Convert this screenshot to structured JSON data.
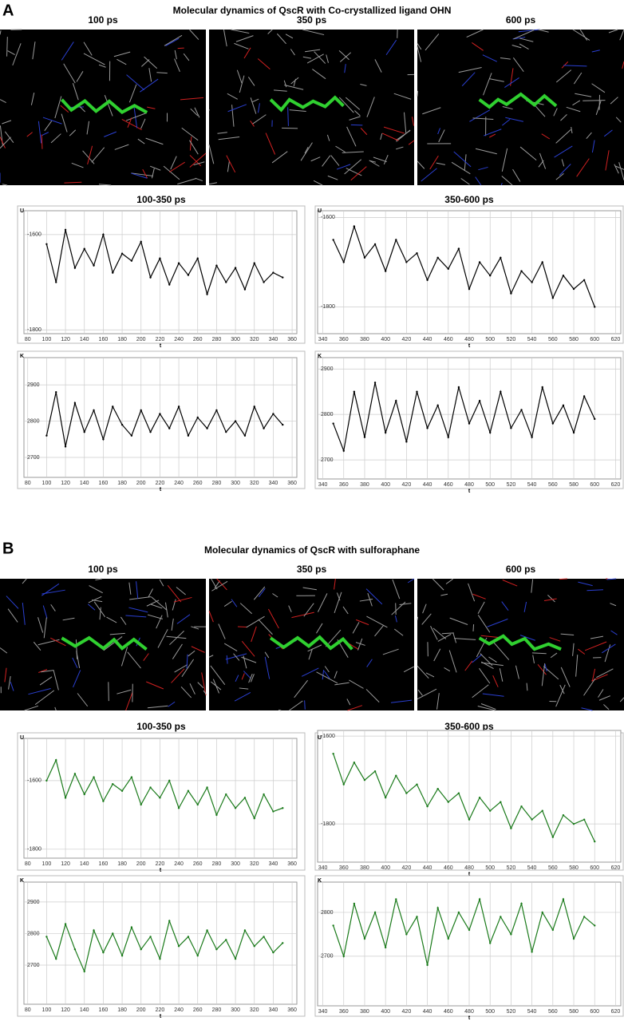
{
  "panels": [
    {
      "label": "A",
      "title": "Molecular dynamics of QscR with Co-crystallized ligand OHN",
      "image_titles": [
        "100 ps",
        "350 ps",
        "600 ps"
      ]
    },
    {
      "label": "B",
      "title": "Molecular dynamics of QscR with sulforaphane",
      "image_titles": [
        "100 ps",
        "350 ps",
        "600 ps"
      ]
    }
  ],
  "chart_data": [
    {
      "type": "line",
      "title": "100-350 ps",
      "ylabel": "U",
      "xlabel": "t",
      "grid": true,
      "color": "#000000",
      "xlim": [
        76,
        365
      ],
      "xticks": [
        80,
        100,
        120,
        140,
        160,
        180,
        200,
        220,
        240,
        260,
        280,
        300,
        320,
        340,
        360
      ],
      "ylim": [
        -1808,
        -1550
      ],
      "yticks": [
        -1600,
        -1800
      ],
      "x": [
        100,
        110,
        120,
        130,
        140,
        150,
        160,
        170,
        180,
        190,
        200,
        210,
        220,
        230,
        240,
        250,
        260,
        270,
        280,
        290,
        300,
        310,
        320,
        330,
        340,
        350
      ],
      "values": [
        -1620,
        -1700,
        -1590,
        -1670,
        -1630,
        -1665,
        -1600,
        -1680,
        -1640,
        -1655,
        -1615,
        -1690,
        -1650,
        -1705,
        -1660,
        -1685,
        -1650,
        -1725,
        -1665,
        -1700,
        -1670,
        -1715,
        -1660,
        -1700,
        -1680,
        -1690
      ]
    },
    {
      "type": "line",
      "title": "350-600 ps",
      "ylabel": "U",
      "xlabel": "t",
      "grid": true,
      "color": "#000000",
      "xlim": [
        335,
        625
      ],
      "xticks": [
        340,
        360,
        380,
        400,
        420,
        440,
        460,
        480,
        500,
        520,
        540,
        560,
        580,
        600,
        620
      ],
      "ylim": [
        -1860,
        -1585
      ],
      "yticks": [
        -1600,
        -1800
      ],
      "x": [
        350,
        360,
        370,
        380,
        390,
        400,
        410,
        420,
        430,
        440,
        450,
        460,
        470,
        480,
        490,
        500,
        510,
        520,
        530,
        540,
        550,
        560,
        570,
        580,
        590,
        600
      ],
      "values": [
        -1650,
        -1700,
        -1620,
        -1690,
        -1660,
        -1720,
        -1650,
        -1700,
        -1680,
        -1740,
        -1690,
        -1715,
        -1670,
        -1760,
        -1700,
        -1730,
        -1690,
        -1770,
        -1720,
        -1745,
        -1700,
        -1780,
        -1730,
        -1760,
        -1740,
        -1800
      ]
    },
    {
      "type": "line",
      "ylabel": "K",
      "xlabel": "t",
      "grid": true,
      "color": "#000000",
      "xlim": [
        76,
        365
      ],
      "xticks": [
        80,
        100,
        120,
        140,
        160,
        180,
        200,
        220,
        240,
        260,
        280,
        300,
        320,
        340,
        360
      ],
      "ylim": [
        2645,
        2975
      ],
      "yticks": [
        2700,
        2800,
        2900
      ],
      "x": [
        100,
        110,
        120,
        130,
        140,
        150,
        160,
        170,
        180,
        190,
        200,
        210,
        220,
        230,
        240,
        250,
        260,
        270,
        280,
        290,
        300,
        310,
        320,
        330,
        340,
        350
      ],
      "values": [
        2760,
        2880,
        2730,
        2850,
        2770,
        2830,
        2750,
        2840,
        2790,
        2760,
        2830,
        2770,
        2820,
        2780,
        2840,
        2760,
        2810,
        2780,
        2830,
        2770,
        2800,
        2760,
        2840,
        2780,
        2820,
        2790
      ]
    },
    {
      "type": "line",
      "ylabel": "K",
      "xlabel": "t",
      "grid": true,
      "color": "#000000",
      "xlim": [
        335,
        625
      ],
      "xticks": [
        340,
        360,
        380,
        400,
        420,
        440,
        460,
        480,
        500,
        520,
        540,
        560,
        580,
        600,
        620
      ],
      "ylim": [
        2658,
        2925
      ],
      "yticks": [
        2700,
        2800,
        2900
      ],
      "x": [
        350,
        360,
        370,
        380,
        390,
        400,
        410,
        420,
        430,
        440,
        450,
        460,
        470,
        480,
        490,
        500,
        510,
        520,
        530,
        540,
        550,
        560,
        570,
        580,
        590,
        600
      ],
      "values": [
        2780,
        2720,
        2850,
        2750,
        2870,
        2760,
        2830,
        2740,
        2850,
        2770,
        2820,
        2750,
        2860,
        2780,
        2830,
        2760,
        2850,
        2770,
        2810,
        2750,
        2860,
        2780,
        2820,
        2760,
        2840,
        2790
      ]
    },
    {
      "type": "line",
      "title": "100-350 ps",
      "ylabel": "U",
      "xlabel": "t",
      "grid": true,
      "color": "#1a7a1a",
      "xlim": [
        76,
        365
      ],
      "xticks": [
        80,
        100,
        120,
        140,
        160,
        180,
        200,
        220,
        240,
        260,
        280,
        300,
        320,
        340,
        360
      ],
      "ylim": [
        -1826,
        -1477
      ],
      "yticks": [
        -1600,
        -1800
      ],
      "x": [
        100,
        110,
        120,
        130,
        140,
        150,
        160,
        170,
        180,
        190,
        200,
        210,
        220,
        230,
        240,
        250,
        260,
        270,
        280,
        290,
        300,
        310,
        320,
        330,
        340,
        350
      ],
      "values": [
        -1600,
        -1540,
        -1650,
        -1580,
        -1640,
        -1590,
        -1660,
        -1610,
        -1630,
        -1590,
        -1670,
        -1620,
        -1650,
        -1600,
        -1680,
        -1630,
        -1670,
        -1620,
        -1700,
        -1640,
        -1680,
        -1650,
        -1710,
        -1640,
        -1690,
        -1680
      ]
    },
    {
      "type": "line",
      "title": "350-600 ps",
      "ylabel": "U",
      "xlabel": "t",
      "grid": true,
      "color": "#1a7a1a",
      "xlim": [
        335,
        625
      ],
      "xticks": [
        340,
        360,
        380,
        400,
        420,
        440,
        460,
        480,
        500,
        520,
        540,
        560,
        580,
        600,
        620
      ],
      "ylim": [
        -1887,
        -1587
      ],
      "yticks": [
        -1600,
        -1800
      ],
      "x": [
        350,
        360,
        370,
        380,
        390,
        400,
        410,
        420,
        430,
        440,
        450,
        460,
        470,
        480,
        490,
        500,
        510,
        520,
        530,
        540,
        550,
        560,
        570,
        580,
        590,
        600
      ],
      "values": [
        -1640,
        -1710,
        -1660,
        -1700,
        -1680,
        -1740,
        -1690,
        -1730,
        -1710,
        -1760,
        -1720,
        -1750,
        -1730,
        -1790,
        -1740,
        -1770,
        -1750,
        -1810,
        -1760,
        -1790,
        -1770,
        -1830,
        -1780,
        -1800,
        -1790,
        -1840
      ]
    },
    {
      "type": "line",
      "ylabel": "K",
      "xlabel": "t",
      "grid": true,
      "color": "#1a7a1a",
      "xlim": [
        76,
        365
      ],
      "xticks": [
        80,
        100,
        120,
        140,
        160,
        180,
        200,
        220,
        240,
        260,
        280,
        300,
        320,
        340,
        360
      ],
      "ylim": [
        2576,
        2963
      ],
      "yticks": [
        2700,
        2800,
        2900
      ],
      "x": [
        100,
        110,
        120,
        130,
        140,
        150,
        160,
        170,
        180,
        190,
        200,
        210,
        220,
        230,
        240,
        250,
        260,
        270,
        280,
        290,
        300,
        310,
        320,
        330,
        340,
        350
      ],
      "values": [
        2790,
        2720,
        2830,
        2750,
        2680,
        2810,
        2740,
        2800,
        2730,
        2820,
        2750,
        2790,
        2720,
        2840,
        2760,
        2790,
        2730,
        2810,
        2750,
        2780,
        2720,
        2810,
        2760,
        2790,
        2740,
        2770
      ]
    },
    {
      "type": "line",
      "ylabel": "K",
      "xlabel": "t",
      "grid": true,
      "color": "#1a7a1a",
      "xlim": [
        335,
        625
      ],
      "xticks": [
        340,
        360,
        380,
        400,
        420,
        440,
        460,
        480,
        500,
        520,
        540,
        560,
        580,
        600,
        620
      ],
      "ylim": [
        2587,
        2869
      ],
      "yticks": [
        2700,
        2800
      ],
      "x": [
        350,
        360,
        370,
        380,
        390,
        400,
        410,
        420,
        430,
        440,
        450,
        460,
        470,
        480,
        490,
        500,
        510,
        520,
        530,
        540,
        550,
        560,
        570,
        580,
        590,
        600
      ],
      "values": [
        2770,
        2700,
        2820,
        2740,
        2800,
        2720,
        2830,
        2750,
        2790,
        2680,
        2810,
        2740,
        2800,
        2760,
        2830,
        2730,
        2790,
        2750,
        2820,
        2710,
        2800,
        2760,
        2830,
        2740,
        2790,
        2770
      ]
    }
  ]
}
